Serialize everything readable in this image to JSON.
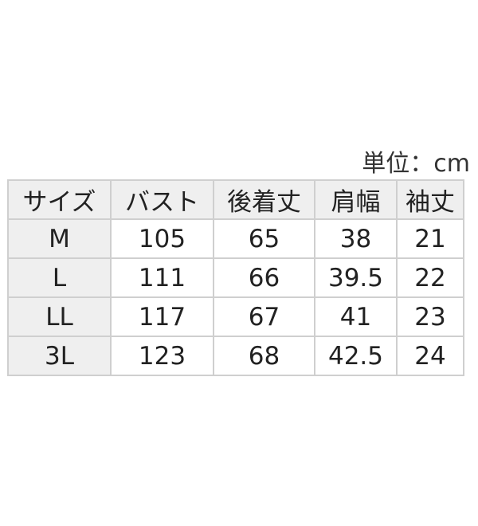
{
  "unit_label": "単位：cm",
  "headers": [
    "サイズ",
    "バスト",
    "後着丈",
    "肩幅",
    "袖丈"
  ],
  "rows": [
    [
      "M",
      "105",
      "65",
      "38",
      "21"
    ],
    [
      "L",
      "111",
      "66",
      "39.5",
      "22"
    ],
    [
      "LL",
      "117",
      "67",
      "41",
      "23"
    ],
    [
      "3L",
      "123",
      "68",
      "42.5",
      "24"
    ]
  ],
  "colors": {
    "header_bg": "#efefef",
    "border": "#cfcfcf"
  }
}
